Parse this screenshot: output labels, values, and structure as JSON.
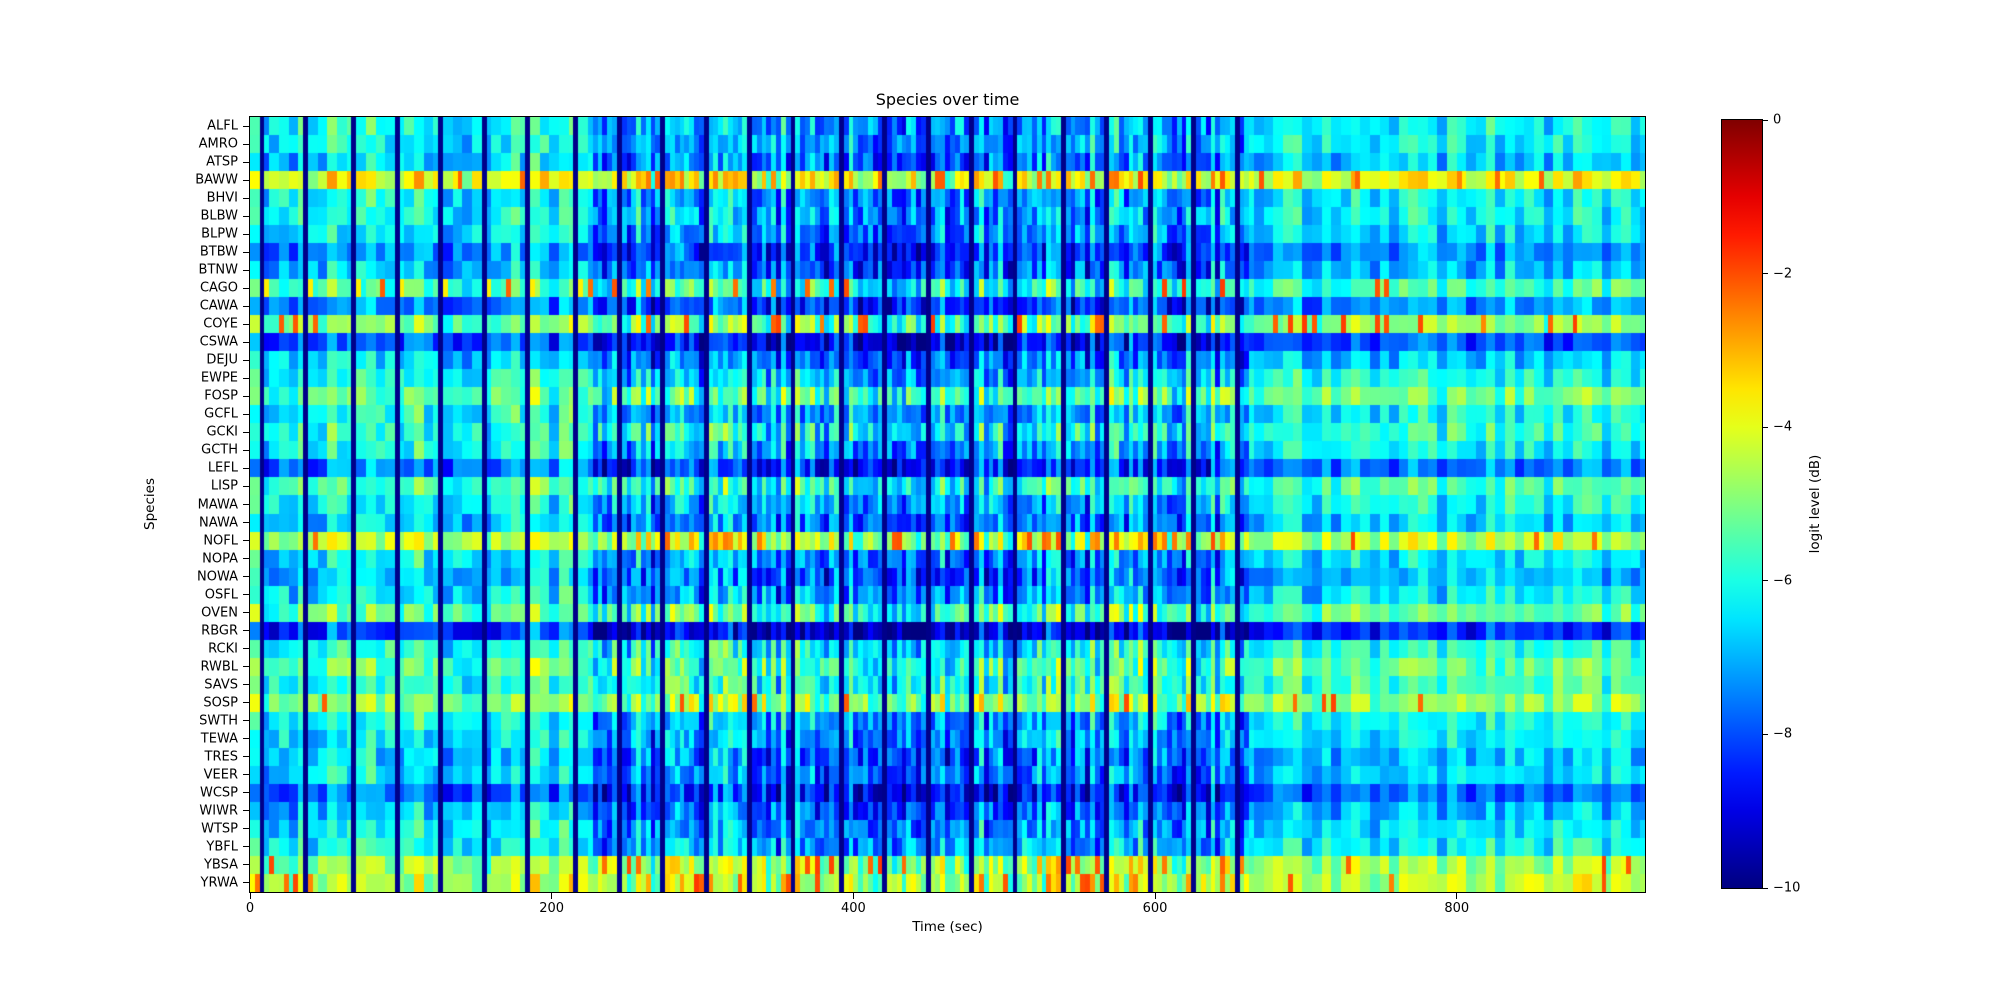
{
  "figure": {
    "title": "Species over time",
    "background_color": "#ffffff"
  },
  "chart_data": {
    "type": "heatmap",
    "title": "Species over time",
    "xlabel": "Time (sec)",
    "ylabel": "Species",
    "x_range_sec": [
      0,
      924.8
    ],
    "x_ticks": [
      0,
      200,
      400,
      600,
      800
    ],
    "x_tick_labels": [
      "0",
      "200",
      "400",
      "600",
      "800"
    ],
    "species": [
      "ALFL",
      "AMRO",
      "ATSP",
      "BAWW",
      "BHVI",
      "BLBW",
      "BLPW",
      "BTBW",
      "BTNW",
      "CAGO",
      "CAWA",
      "COYE",
      "CSWA",
      "DEJU",
      "EWPE",
      "FOSP",
      "GCFL",
      "GCKI",
      "GCTH",
      "LEFL",
      "LISP",
      "MAWA",
      "NAWA",
      "NOFL",
      "NOPA",
      "NOWA",
      "OSFL",
      "OVEN",
      "RBGR",
      "RCKI",
      "RWBL",
      "SAVS",
      "SOSP",
      "SWTH",
      "TEWA",
      "TRES",
      "VEER",
      "WCSP",
      "WIWR",
      "WTSP",
      "YBFL",
      "YBSA",
      "YRWA"
    ],
    "row_base_levels_db": [
      -6.3,
      -6.4,
      -6.8,
      -3.9,
      -6.4,
      -6.3,
      -6.6,
      -7.4,
      -6.9,
      -5.6,
      -7.4,
      -5.0,
      -8.0,
      -6.8,
      -6.1,
      -5.3,
      -6.3,
      -5.9,
      -6.3,
      -7.7,
      -5.6,
      -6.3,
      -6.8,
      -4.4,
      -6.5,
      -7.0,
      -6.5,
      -5.3,
      -8.4,
      -5.9,
      -5.3,
      -5.7,
      -4.9,
      -6.3,
      -6.5,
      -6.9,
      -6.7,
      -7.9,
      -7.0,
      -6.6,
      -6.3,
      -4.7,
      -4.5
    ],
    "bright_row_indices": [
      3,
      9,
      11,
      23,
      32,
      41,
      42
    ],
    "colorbar": {
      "label": "logit level (dB)",
      "colormap": "jet",
      "vmin": -10,
      "vmax": 0,
      "ticks": [
        0,
        -2,
        -4,
        -6,
        -8,
        -10
      ],
      "tick_labels": [
        "0",
        "−2",
        "−4",
        "−6",
        "−8",
        "−10"
      ]
    },
    "render": {
      "time_bin_sec": 3.2,
      "gap_start_sec": 5.5,
      "gap_period_sec": 29.4,
      "gaps_until_sec": 662,
      "gap_level_db": -9.9,
      "section_bounds_sec": [
        226,
        662
      ],
      "section_col_noise_db": [
        0.85,
        1.15,
        0.65
      ],
      "section_cell_noise_db": [
        0.8,
        1.05,
        0.6
      ],
      "section_dark_bias_db": [
        0.25,
        -0.85,
        0.05
      ],
      "spike_prob": [
        0.05,
        0.09,
        0.05
      ],
      "spike_level_db": -2.6,
      "post_gap_highlight_row": 9,
      "post_gap_highlight_level_db": -3.6,
      "seed": 42
    }
  },
  "axes": {
    "x_axis_name": "time-axis",
    "y_axis_name": "species-axis"
  }
}
